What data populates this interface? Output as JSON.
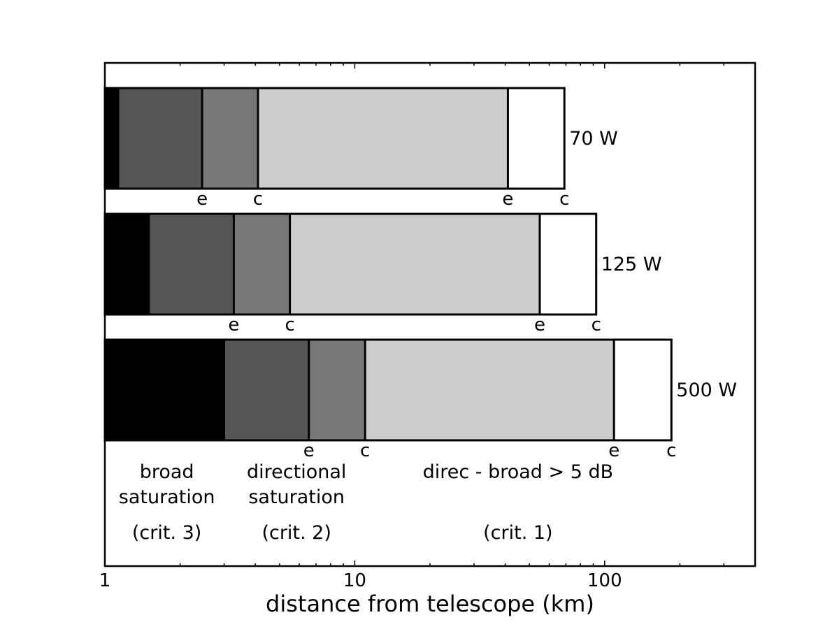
{
  "chart_data": {
    "type": "bar",
    "orientation": "horizontal-stacked-ranges",
    "xlabel": "distance from telescope (km)",
    "ylabel": "",
    "title": "",
    "x_scale": "log",
    "xlim": [
      1,
      400
    ],
    "x_ticks": [
      1,
      10,
      100
    ],
    "x_tick_labels": [
      "1",
      "10",
      "100"
    ],
    "grid": false,
    "segment_colors": [
      "#000000",
      "#555555",
      "#777777",
      "#cccccc",
      "#ffffff"
    ],
    "rows": [
      {
        "label": "70 W",
        "boundaries": [
          1,
          1.13,
          2.45,
          4.1,
          41,
          69
        ],
        "edge_labels": [
          "e",
          "c",
          "e",
          "c"
        ]
      },
      {
        "label": "125 W",
        "boundaries": [
          1,
          1.5,
          3.28,
          5.5,
          55,
          92.5
        ],
        "edge_labels": [
          "e",
          "c",
          "e",
          "c"
        ]
      },
      {
        "label": "500 W",
        "boundaries": [
          1,
          3.0,
          6.55,
          11.0,
          109,
          185
        ],
        "edge_labels": [
          "e",
          "c",
          "e",
          "c"
        ]
      }
    ],
    "annotations": [
      {
        "lines": [
          "broad",
          "saturation"
        ],
        "criterion": "(crit. 3)",
        "x": 1.77
      },
      {
        "lines": [
          "directional",
          "saturation"
        ],
        "criterion": "(crit. 2)",
        "x": 5.85
      },
      {
        "lines": [
          "direc - broad > 5 dB"
        ],
        "criterion": "(crit. 1)",
        "x": 45
      }
    ]
  }
}
